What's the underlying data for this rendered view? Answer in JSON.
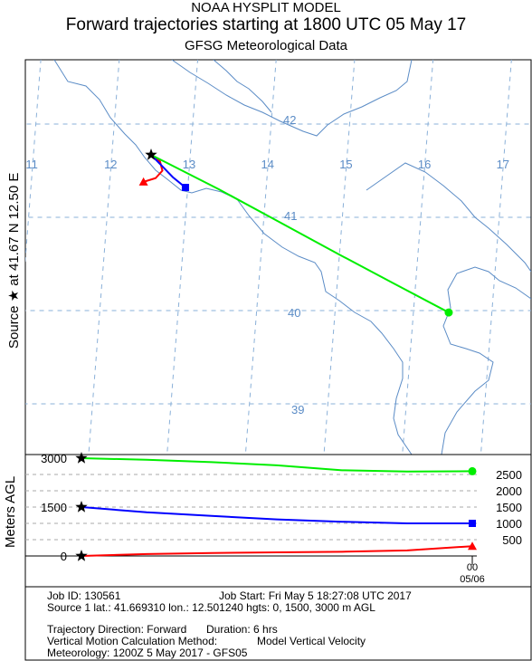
{
  "header": {
    "line1": "NOAA HYSPLIT MODEL",
    "line2": "Forward trajectories starting at 1800 UTC 05 May 17",
    "line3": "GFSG Meteorological Data"
  },
  "side_label": {
    "text": "Source ★ at  41.67 N  12.50 E"
  },
  "map": {
    "longitude_labels": [
      "11",
      "12",
      "13",
      "14",
      "15",
      "16",
      "17"
    ],
    "latitude_labels": [
      "42",
      "41",
      "40",
      "39"
    ],
    "grid_color": "#8ab0d8",
    "coast_color": "#5b8cc6",
    "label_color": "#5b8cc6"
  },
  "vertical_panel": {
    "ylabel": "Meters AGL",
    "left_ticks": [
      "3000",
      "1500",
      "0"
    ],
    "right_ticks": [
      "2500",
      "2000",
      "1500",
      "1000",
      "500"
    ],
    "time_label_top": "00",
    "time_label_bottom": "05/06"
  },
  "chart_data": {
    "type": "line",
    "title": "Forward trajectories starting at 1800 UTC 05 May 17",
    "source": {
      "lat": 41.67,
      "lon": 12.5,
      "marker": "star"
    },
    "series": [
      {
        "start_height_m": 0,
        "color": "#ff0000",
        "end_marker": "triangle",
        "path": [
          {
            "lon": 12.5,
            "lat": 41.67
          },
          {
            "lon": 12.62,
            "lat": 41.6
          },
          {
            "lon": 12.66,
            "lat": 41.5
          },
          {
            "lon": 12.58,
            "lat": 41.42
          },
          {
            "lon": 12.43,
            "lat": 41.38
          }
        ],
        "heights_m": [
          {
            "hour": 0,
            "value": 0
          },
          {
            "hour": 1,
            "value": 60
          },
          {
            "hour": 2,
            "value": 90
          },
          {
            "hour": 3,
            "value": 110
          },
          {
            "hour": 4,
            "value": 130
          },
          {
            "hour": 5,
            "value": 170
          },
          {
            "hour": 6,
            "value": 300
          }
        ]
      },
      {
        "start_height_m": 1500,
        "color": "#0000ff",
        "end_marker": "square",
        "path": [
          {
            "lon": 12.5,
            "lat": 41.67
          },
          {
            "lon": 12.65,
            "lat": 41.55
          },
          {
            "lon": 12.8,
            "lat": 41.43
          },
          {
            "lon": 12.97,
            "lat": 41.32
          }
        ],
        "heights_m": [
          {
            "hour": 0,
            "value": 1500
          },
          {
            "hour": 1,
            "value": 1340
          },
          {
            "hour": 2,
            "value": 1230
          },
          {
            "hour": 3,
            "value": 1120
          },
          {
            "hour": 4,
            "value": 1050
          },
          {
            "hour": 5,
            "value": 1000
          },
          {
            "hour": 6,
            "value": 1000
          }
        ]
      },
      {
        "start_height_m": 3000,
        "color": "#00ee00",
        "end_marker": "circle",
        "path": [
          {
            "lon": 12.5,
            "lat": 41.67
          },
          {
            "lon": 13.4,
            "lat": 41.3
          },
          {
            "lon": 14.2,
            "lat": 40.95
          },
          {
            "lon": 15.0,
            "lat": 40.6
          },
          {
            "lon": 15.7,
            "lat": 40.3
          },
          {
            "lon": 16.45,
            "lat": 39.98
          }
        ],
        "heights_m": [
          {
            "hour": 0,
            "value": 3000
          },
          {
            "hour": 1,
            "value": 2950
          },
          {
            "hour": 2,
            "value": 2880
          },
          {
            "hour": 3,
            "value": 2780
          },
          {
            "hour": 4,
            "value": 2630
          },
          {
            "hour": 5,
            "value": 2590
          },
          {
            "hour": 6,
            "value": 2600
          }
        ]
      }
    ],
    "ylabel": "Meters AGL",
    "ylim": [
      0,
      3000
    ],
    "x_hours": [
      0,
      6
    ],
    "grid": true
  },
  "info": {
    "job_id": "Job ID: 130561",
    "job_start": "Job Start: Fri May  5 18:27:08 UTC 2017",
    "source_line": "Source 1 lat.: 41.669310  lon.: 12.501240  hgts: 0, 1500, 3000 m AGL",
    "direction": "Trajectory Direction: Forward",
    "duration": "Duration: 6 hrs",
    "vertical_method": "Vertical Motion Calculation Method:",
    "vertical_method_value": "Model Vertical Velocity",
    "meteorology": "Meteorology: 1200Z  5 May 2017 - GFS05"
  }
}
